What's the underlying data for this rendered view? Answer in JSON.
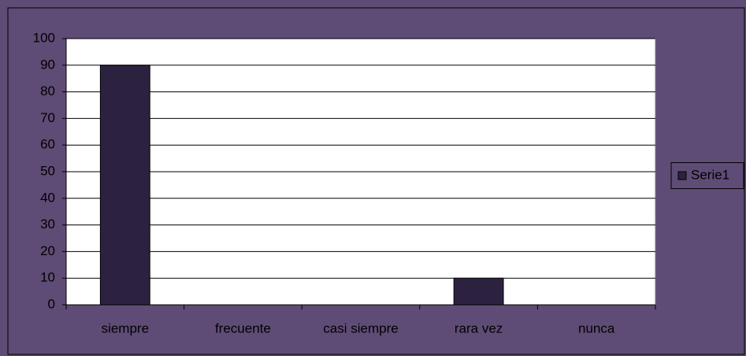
{
  "chart_data": {
    "type": "bar",
    "categories": [
      "siempre",
      "frecuente",
      "casi siempre",
      "rara vez",
      "nunca"
    ],
    "series": [
      {
        "name": "Serie1",
        "color": "#2c2240",
        "values": [
          90,
          0,
          0,
          10,
          0
        ]
      }
    ],
    "ylim": [
      0,
      100
    ],
    "yticks": [
      0,
      10,
      20,
      30,
      40,
      50,
      60,
      70,
      80,
      90,
      100
    ],
    "grid": true,
    "legend": "right"
  }
}
